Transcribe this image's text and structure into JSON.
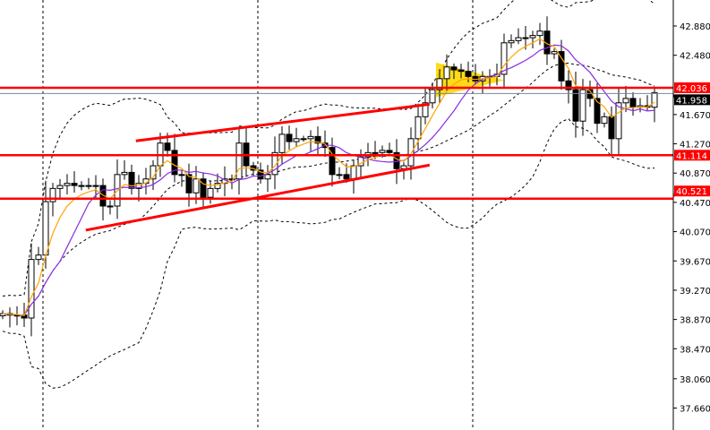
{
  "chart_data": {
    "type": "candlestick",
    "title": "",
    "ylim": [
      37.5,
      43.15
    ],
    "y_ticks": [
      "42.880",
      "42.480",
      "41.670",
      "41.270",
      "40.870",
      "40.470",
      "40.070",
      "39.670",
      "39.270",
      "38.870",
      "38.470",
      "38.060",
      "37.660"
    ],
    "y_tick_values": [
      42.88,
      42.48,
      41.67,
      41.27,
      40.87,
      40.47,
      40.07,
      39.67,
      39.27,
      38.87,
      38.47,
      38.06,
      37.66
    ],
    "closes": [
      38.95,
      38.93,
      38.93,
      38.89,
      39.69,
      39.75,
      40.48,
      40.66,
      40.7,
      40.73,
      40.7,
      40.7,
      40.69,
      40.7,
      40.42,
      40.42,
      40.85,
      40.88,
      40.66,
      40.73,
      40.79,
      40.97,
      41.28,
      41.18,
      40.85,
      40.85,
      40.6,
      40.79,
      40.54,
      40.66,
      40.73,
      40.79,
      40.79,
      41.28,
      40.97,
      40.91,
      40.79,
      40.85,
      41.15,
      41.4,
      41.3,
      41.34,
      41.34,
      41.37,
      41.28,
      41.22,
      40.85,
      40.85,
      40.79,
      40.97,
      41.09,
      41.15,
      41.15,
      41.18,
      41.15,
      40.93,
      40.97,
      41.34,
      41.64,
      41.83,
      42.01,
      42.16,
      42.32,
      42.28,
      42.26,
      42.19,
      42.13,
      42.19,
      42.19,
      42.22,
      42.65,
      42.68,
      42.72,
      42.72,
      42.75,
      42.81,
      42.5,
      42.53,
      42.13,
      42.01,
      41.58,
      42.01,
      41.89,
      41.55,
      41.64,
      41.34,
      41.83,
      41.89,
      41.77,
      41.79,
      41.77,
      41.97
    ],
    "grid": "vertical dashed",
    "indicators": [
      "bollinger-bands",
      "fast-moving-average",
      "slow-moving-average"
    ],
    "levels": [
      {
        "value": 42.036,
        "label": "42.036",
        "color": "#ff0000"
      },
      {
        "value": 41.114,
        "label": "41.114",
        "color": "#ff0000"
      },
      {
        "value": 40.521,
        "label": "40.521",
        "color": "#ff0000"
      }
    ],
    "current_price": {
      "value": 41.958,
      "label": "41.958",
      "color": "#778899"
    },
    "trendlines": [
      {
        "from": [
          18.6,
          41.31
        ],
        "to": [
          59.6,
          41.81
        ]
      },
      {
        "from": [
          11.6,
          40.09
        ],
        "to": [
          59.6,
          40.98
        ]
      }
    ],
    "triangle_pattern": {
      "points": [
        [
          60.5,
          42.38
        ],
        [
          60.5,
          41.91
        ],
        [
          70,
          42.14
        ]
      ],
      "color": "#ffd700"
    },
    "colors": {
      "bull_fill": "#ffffff",
      "bear_fill": "#000000",
      "fast_ma": "#ffa500",
      "slow_ma": "#8a2be2",
      "bands": "#000000",
      "level": "#ff0000"
    }
  }
}
